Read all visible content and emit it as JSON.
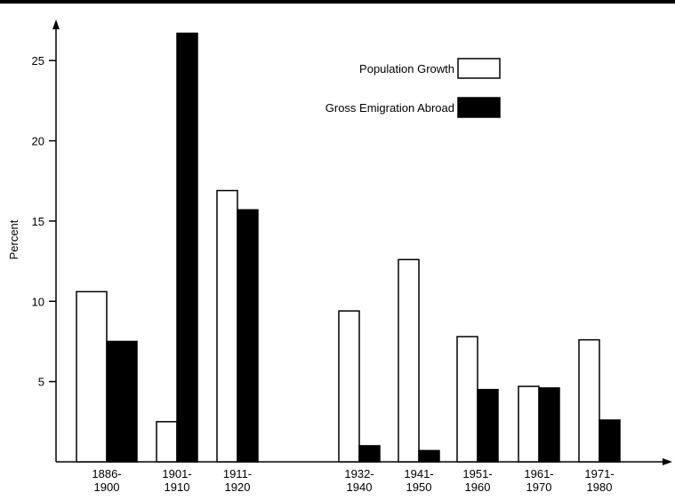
{
  "chart_data": {
    "type": "bar",
    "y_label": "Percent",
    "categories": [
      "1886-\n1900",
      "1901-\n1910",
      "1911-\n1920",
      "1932-\n1940",
      "1941-\n1950",
      "1951-\n1960",
      "1961-\n1970",
      "1971-\n1980"
    ],
    "series": [
      {
        "name": "Population Growth",
        "color": "#ffffff",
        "values": [
          10.6,
          2.5,
          16.9,
          9.4,
          12.6,
          7.8,
          4.7,
          7.6
        ]
      },
      {
        "name": "Gross Emigration Abroad",
        "color": "#000000",
        "values": [
          7.5,
          26.7,
          15.7,
          1.0,
          0.7,
          4.5,
          4.6,
          2.6
        ]
      }
    ],
    "ylim": [
      0,
      27.5
    ],
    "yticks": [
      5,
      10,
      15,
      20,
      25
    ],
    "grid": false
  }
}
